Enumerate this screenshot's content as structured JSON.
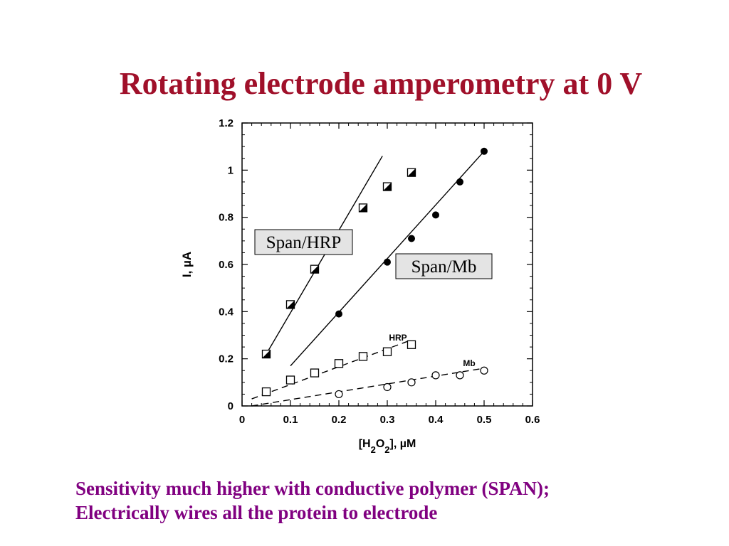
{
  "slide": {
    "title": "Rotating electrode amperometry at 0 V",
    "caption_lines": [
      "Sensitivity much higher with conductive polymer (SPAN);",
      "Electrically wires all the protein to electrode"
    ]
  },
  "chart_data": {
    "type": "scatter",
    "title": "",
    "xlabel": "[H2O2],  µM",
    "ylabel": "I, µA",
    "xlim": [
      0,
      0.6
    ],
    "ylim": [
      0,
      1.2
    ],
    "xticks": [
      "0",
      "0.1",
      "0.2",
      "0.3",
      "0.4",
      "0.5",
      "0.6"
    ],
    "yticks": [
      "0",
      "0.2",
      "0.4",
      "0.6",
      "0.8",
      "1",
      "1.2"
    ],
    "grid": false,
    "series": [
      {
        "name": "Span/HRP",
        "marker": "half-filled-square",
        "x": [
          0.05,
          0.1,
          0.15,
          0.25,
          0.3,
          0.35
        ],
        "y": [
          0.22,
          0.43,
          0.58,
          0.84,
          0.93,
          0.99
        ],
        "fit": {
          "style": "solid",
          "x": [
            0.05,
            0.29
          ],
          "y": [
            0.22,
            1.06
          ]
        }
      },
      {
        "name": "Span/Mb",
        "marker": "filled-circle",
        "x": [
          0.2,
          0.3,
          0.35,
          0.4,
          0.45,
          0.5
        ],
        "y": [
          0.39,
          0.61,
          0.71,
          0.81,
          0.95,
          1.08
        ],
        "fit": {
          "style": "solid",
          "x": [
            0.1,
            0.5
          ],
          "y": [
            0.17,
            1.08
          ]
        }
      },
      {
        "name": "HRP",
        "marker": "open-square",
        "x": [
          0.05,
          0.1,
          0.15,
          0.2,
          0.25,
          0.3,
          0.35
        ],
        "y": [
          0.06,
          0.11,
          0.14,
          0.18,
          0.21,
          0.23,
          0.26
        ],
        "fit": {
          "style": "dashed",
          "x": [
            0.02,
            0.35
          ],
          "y": [
            0.03,
            0.28
          ]
        }
      },
      {
        "name": "Mb",
        "marker": "open-circle",
        "x": [
          0.2,
          0.3,
          0.35,
          0.4,
          0.45,
          0.5
        ],
        "y": [
          0.05,
          0.08,
          0.1,
          0.13,
          0.13,
          0.15
        ],
        "fit": {
          "style": "dashed",
          "x": [
            0.02,
            0.5
          ],
          "y": [
            0.0,
            0.16
          ]
        }
      }
    ],
    "annotations": [
      {
        "text": "Span/HRP",
        "boxed": true,
        "series": "Span/HRP"
      },
      {
        "text": "Span/Mb",
        "boxed": true,
        "series": "Span/Mb"
      },
      {
        "text": "HRP",
        "boxed": false,
        "series": "HRP"
      },
      {
        "text": "Mb",
        "boxed": false,
        "series": "Mb"
      }
    ]
  }
}
